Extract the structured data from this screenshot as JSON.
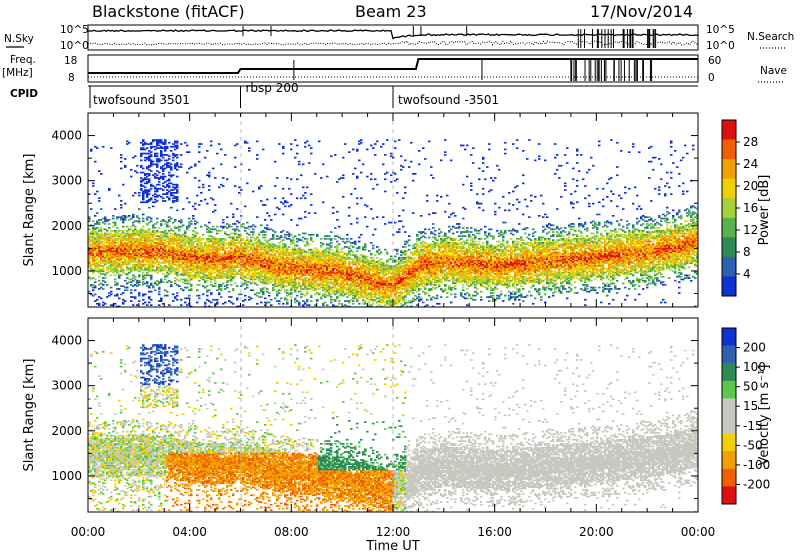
{
  "header": {
    "station": "Blackstone (fitACF)",
    "beam": "Beam 23",
    "date": "17/Nov/2014"
  },
  "left_labels": {
    "nsky": "N.Sky",
    "freq": "Freq.",
    "freq_unit": "[MHz]",
    "cpid": "CPID"
  },
  "right_labels": {
    "nsearch": "N.Search",
    "nave": "Nave"
  },
  "noise_panel": {
    "left_ticks": [
      "10^5",
      "10^0"
    ],
    "right_ticks": [
      "10^5",
      "10^0"
    ]
  },
  "freq_panel": {
    "left_ticks": [
      "18",
      "8"
    ],
    "right_ticks": [
      "60",
      "0"
    ]
  },
  "cpid": [
    {
      "label": "twofsound 3501",
      "start": 0.0,
      "end": 6.0
    },
    {
      "label": "rbsp 200",
      "start": 6.0,
      "end": 12.0
    },
    {
      "label": "twofsound -3501",
      "start": 12.0,
      "end": 24.0
    }
  ],
  "colors": {
    "power": [
      "#1030d0",
      "#3060b0",
      "#2e8b57",
      "#5bb14a",
      "#a8d13a",
      "#f0d000",
      "#f0a000",
      "#f06000",
      "#e01010"
    ],
    "velocity": [
      "#e01010",
      "#f06000",
      "#f0a000",
      "#f0d000",
      "#c8c8c0",
      "#c8c8c0",
      "#5bc84a",
      "#2e8b57",
      "#3060b0",
      "#1030d0"
    ]
  },
  "power_colorbar": {
    "label": "Power [dB]",
    "ticks": [
      "28",
      "24",
      "20",
      "16",
      "12",
      "8",
      "4"
    ]
  },
  "velocity_colorbar": {
    "label": "Velocity [m s⁻¹]",
    "ticks": [
      "200",
      "100",
      "50",
      "15",
      "-15",
      "-50",
      "-100",
      "-200"
    ]
  },
  "chart_data": [
    {
      "type": "heatmap",
      "title": "Power",
      "ylabel": "Slant Range [km]",
      "xlabel": "Time UT",
      "xlim": [
        0,
        24
      ],
      "ylim": [
        200,
        4500
      ],
      "yticks": [
        "1000",
        "2000",
        "3000",
        "4000"
      ],
      "xticks": [
        "00:00",
        "04:00",
        "08:00",
        "12:00",
        "16:00",
        "20:00",
        "00:00"
      ],
      "band_centers_km": [
        [
          0,
          1400
        ],
        [
          1,
          1420
        ],
        [
          2,
          1450
        ],
        [
          3,
          1400
        ],
        [
          4,
          1300
        ],
        [
          5,
          1250
        ],
        [
          6,
          1300
        ],
        [
          7,
          1150
        ],
        [
          8,
          1050
        ],
        [
          9,
          1000
        ],
        [
          10,
          950
        ],
        [
          11,
          800
        ],
        [
          12,
          650
        ],
        [
          13,
          1100
        ],
        [
          14,
          1200
        ],
        [
          15,
          1150
        ],
        [
          16,
          1100
        ],
        [
          17,
          1150
        ],
        [
          18,
          1200
        ],
        [
          19,
          1250
        ],
        [
          20,
          1300
        ],
        [
          21,
          1350
        ],
        [
          22,
          1400
        ],
        [
          23,
          1500
        ],
        [
          24,
          1650
        ]
      ],
      "peak_power_db": 30
    },
    {
      "type": "heatmap",
      "title": "Velocity",
      "ylabel": "Slant Range [km]",
      "xlabel": "Time UT",
      "xlim": [
        0,
        24
      ],
      "ylim": [
        200,
        4500
      ],
      "yticks": [
        "1000",
        "2000",
        "3000",
        "4000"
      ],
      "xticks": [
        "00:00",
        "04:00",
        "08:00",
        "12:00",
        "16:00",
        "20:00",
        "00:00"
      ],
      "velocity_range": [
        -200,
        200
      ]
    }
  ],
  "xaxis_label": "Time UT"
}
